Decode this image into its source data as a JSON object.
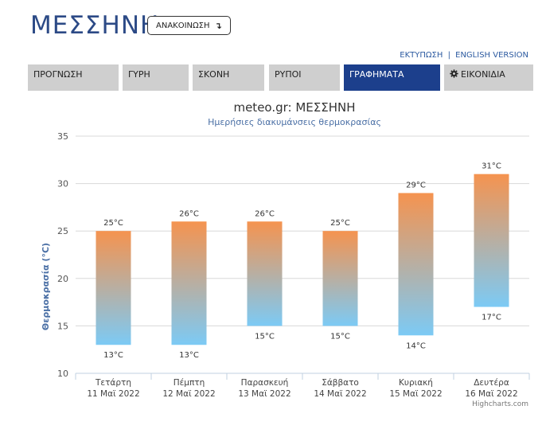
{
  "header": {
    "title": "ΜΕΣΣΗΝΗ",
    "announce_label": "ΑΝΑΚΟΙΝΩΣΗ",
    "announce_arrow": "↴"
  },
  "top_links": {
    "print": "ΕΚΤΥΠΩΣΗ",
    "separator": "|",
    "english": "ENGLISH VERSION"
  },
  "tabs": [
    {
      "label": "ΠΡΟΓΝΩΣΗ",
      "active": false
    },
    {
      "label": "ΓΥΡΗ",
      "active": false
    },
    {
      "label": "ΣΚΟΝΗ",
      "active": false
    },
    {
      "label": "ΡΥΠΟΙ",
      "active": false
    },
    {
      "label": "ΓΡΑΦΗΜΑΤΑ",
      "active": true
    },
    {
      "label": "ΕΙΚΟΝΙΔΙΑ",
      "active": false,
      "icon": "gear-icon"
    }
  ],
  "chart_data": {
    "type": "columnrange",
    "title": "meteo.gr: ΜΕΣΣΗΝΗ",
    "subtitle": "Ημερήσιες διακυμάνσεις θερμοκρασίας",
    "ylabel": "Θερμοκρασία (°C)",
    "ylim": [
      10,
      35
    ],
    "yticks": [
      10,
      15,
      20,
      25,
      30,
      35
    ],
    "unit": "°C",
    "categories": [
      {
        "day": "Τετάρτη",
        "date": "11 Μαϊ 2022"
      },
      {
        "day": "Πέμπτη",
        "date": "12 Μαϊ 2022"
      },
      {
        "day": "Παρασκευή",
        "date": "13 Μαϊ 2022"
      },
      {
        "day": "Σάββατο",
        "date": "14 Μαϊ 2022"
      },
      {
        "day": "Κυριακή",
        "date": "15 Μαϊ 2022"
      },
      {
        "day": "Δευτέρα",
        "date": "16 Μαϊ 2022"
      }
    ],
    "low": [
      13,
      13,
      15,
      15,
      14,
      17
    ],
    "high": [
      25,
      26,
      26,
      25,
      29,
      31
    ],
    "gradient": {
      "top": "#f5934f",
      "bottom": "#7ccaf5"
    },
    "grid": true,
    "credit": "Highcharts.com"
  }
}
